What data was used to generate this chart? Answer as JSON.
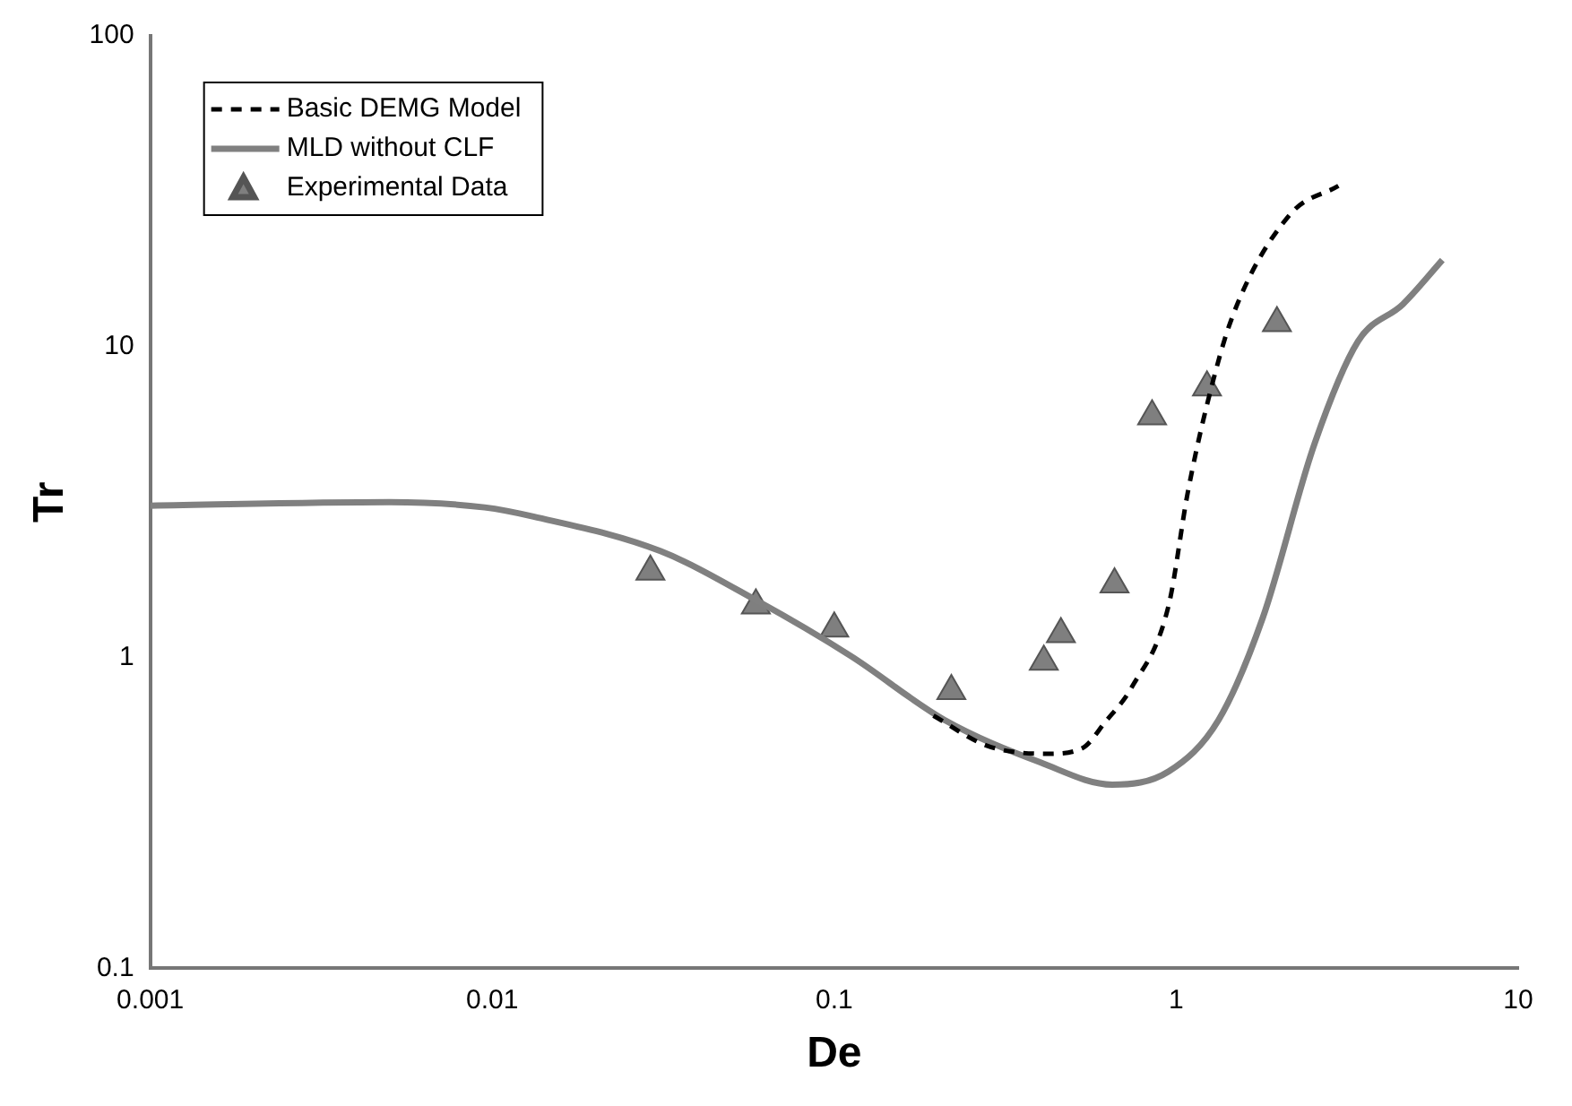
{
  "chart_data": {
    "type": "line",
    "xlabel": "De",
    "ylabel": "Tr",
    "log": "xy",
    "xlim": [
      0.001,
      10
    ],
    "xticks": [
      0.001,
      0.01,
      0.1,
      1,
      10
    ],
    "ylim": [
      0.1,
      100
    ],
    "yticks": [
      0.1,
      1,
      10,
      100
    ],
    "grid": false,
    "legend": "top left",
    "series": [
      {
        "name": "Basic DEMG Model",
        "line_style": "dashed",
        "marker": "none",
        "color": "#000000",
        "x": [
          0.195,
          0.28,
          0.42,
          0.53,
          0.62,
          0.74,
          0.95,
          1.08,
          1.23,
          1.46,
          2.15,
          2.98
        ],
        "values": [
          0.65,
          0.52,
          0.49,
          0.51,
          0.62,
          0.8,
          1.47,
          3.38,
          6.5,
          12.5,
          26.6,
          32.9
        ]
      },
      {
        "name": "MLD without CLF",
        "line_style": "solid",
        "marker": "none",
        "color": "#808080",
        "x": [
          0.001,
          0.005,
          0.0095,
          0.0132,
          0.031,
          0.059,
          0.112,
          0.21,
          0.4,
          0.65,
          0.95,
          1.33,
          1.79,
          2.54,
          3.4,
          4.6,
          6
        ],
        "values": [
          3.08,
          3.16,
          3.04,
          2.84,
          2.2,
          1.53,
          1.01,
          0.63,
          0.46,
          0.39,
          0.43,
          0.63,
          1.34,
          4.89,
          10.4,
          13.7,
          19
        ]
      },
      {
        "name": "Experimental Data",
        "type": "scatter",
        "marker": "triangle",
        "color": "#7f7f7f",
        "x": [
          0.029,
          0.059,
          0.1,
          0.22,
          0.41,
          0.46,
          0.66,
          0.85,
          1.23,
          1.97
        ],
        "values": [
          1.89,
          1.47,
          1.24,
          0.78,
          0.97,
          1.19,
          1.72,
          5.97,
          7.4,
          11.9
        ]
      }
    ]
  }
}
